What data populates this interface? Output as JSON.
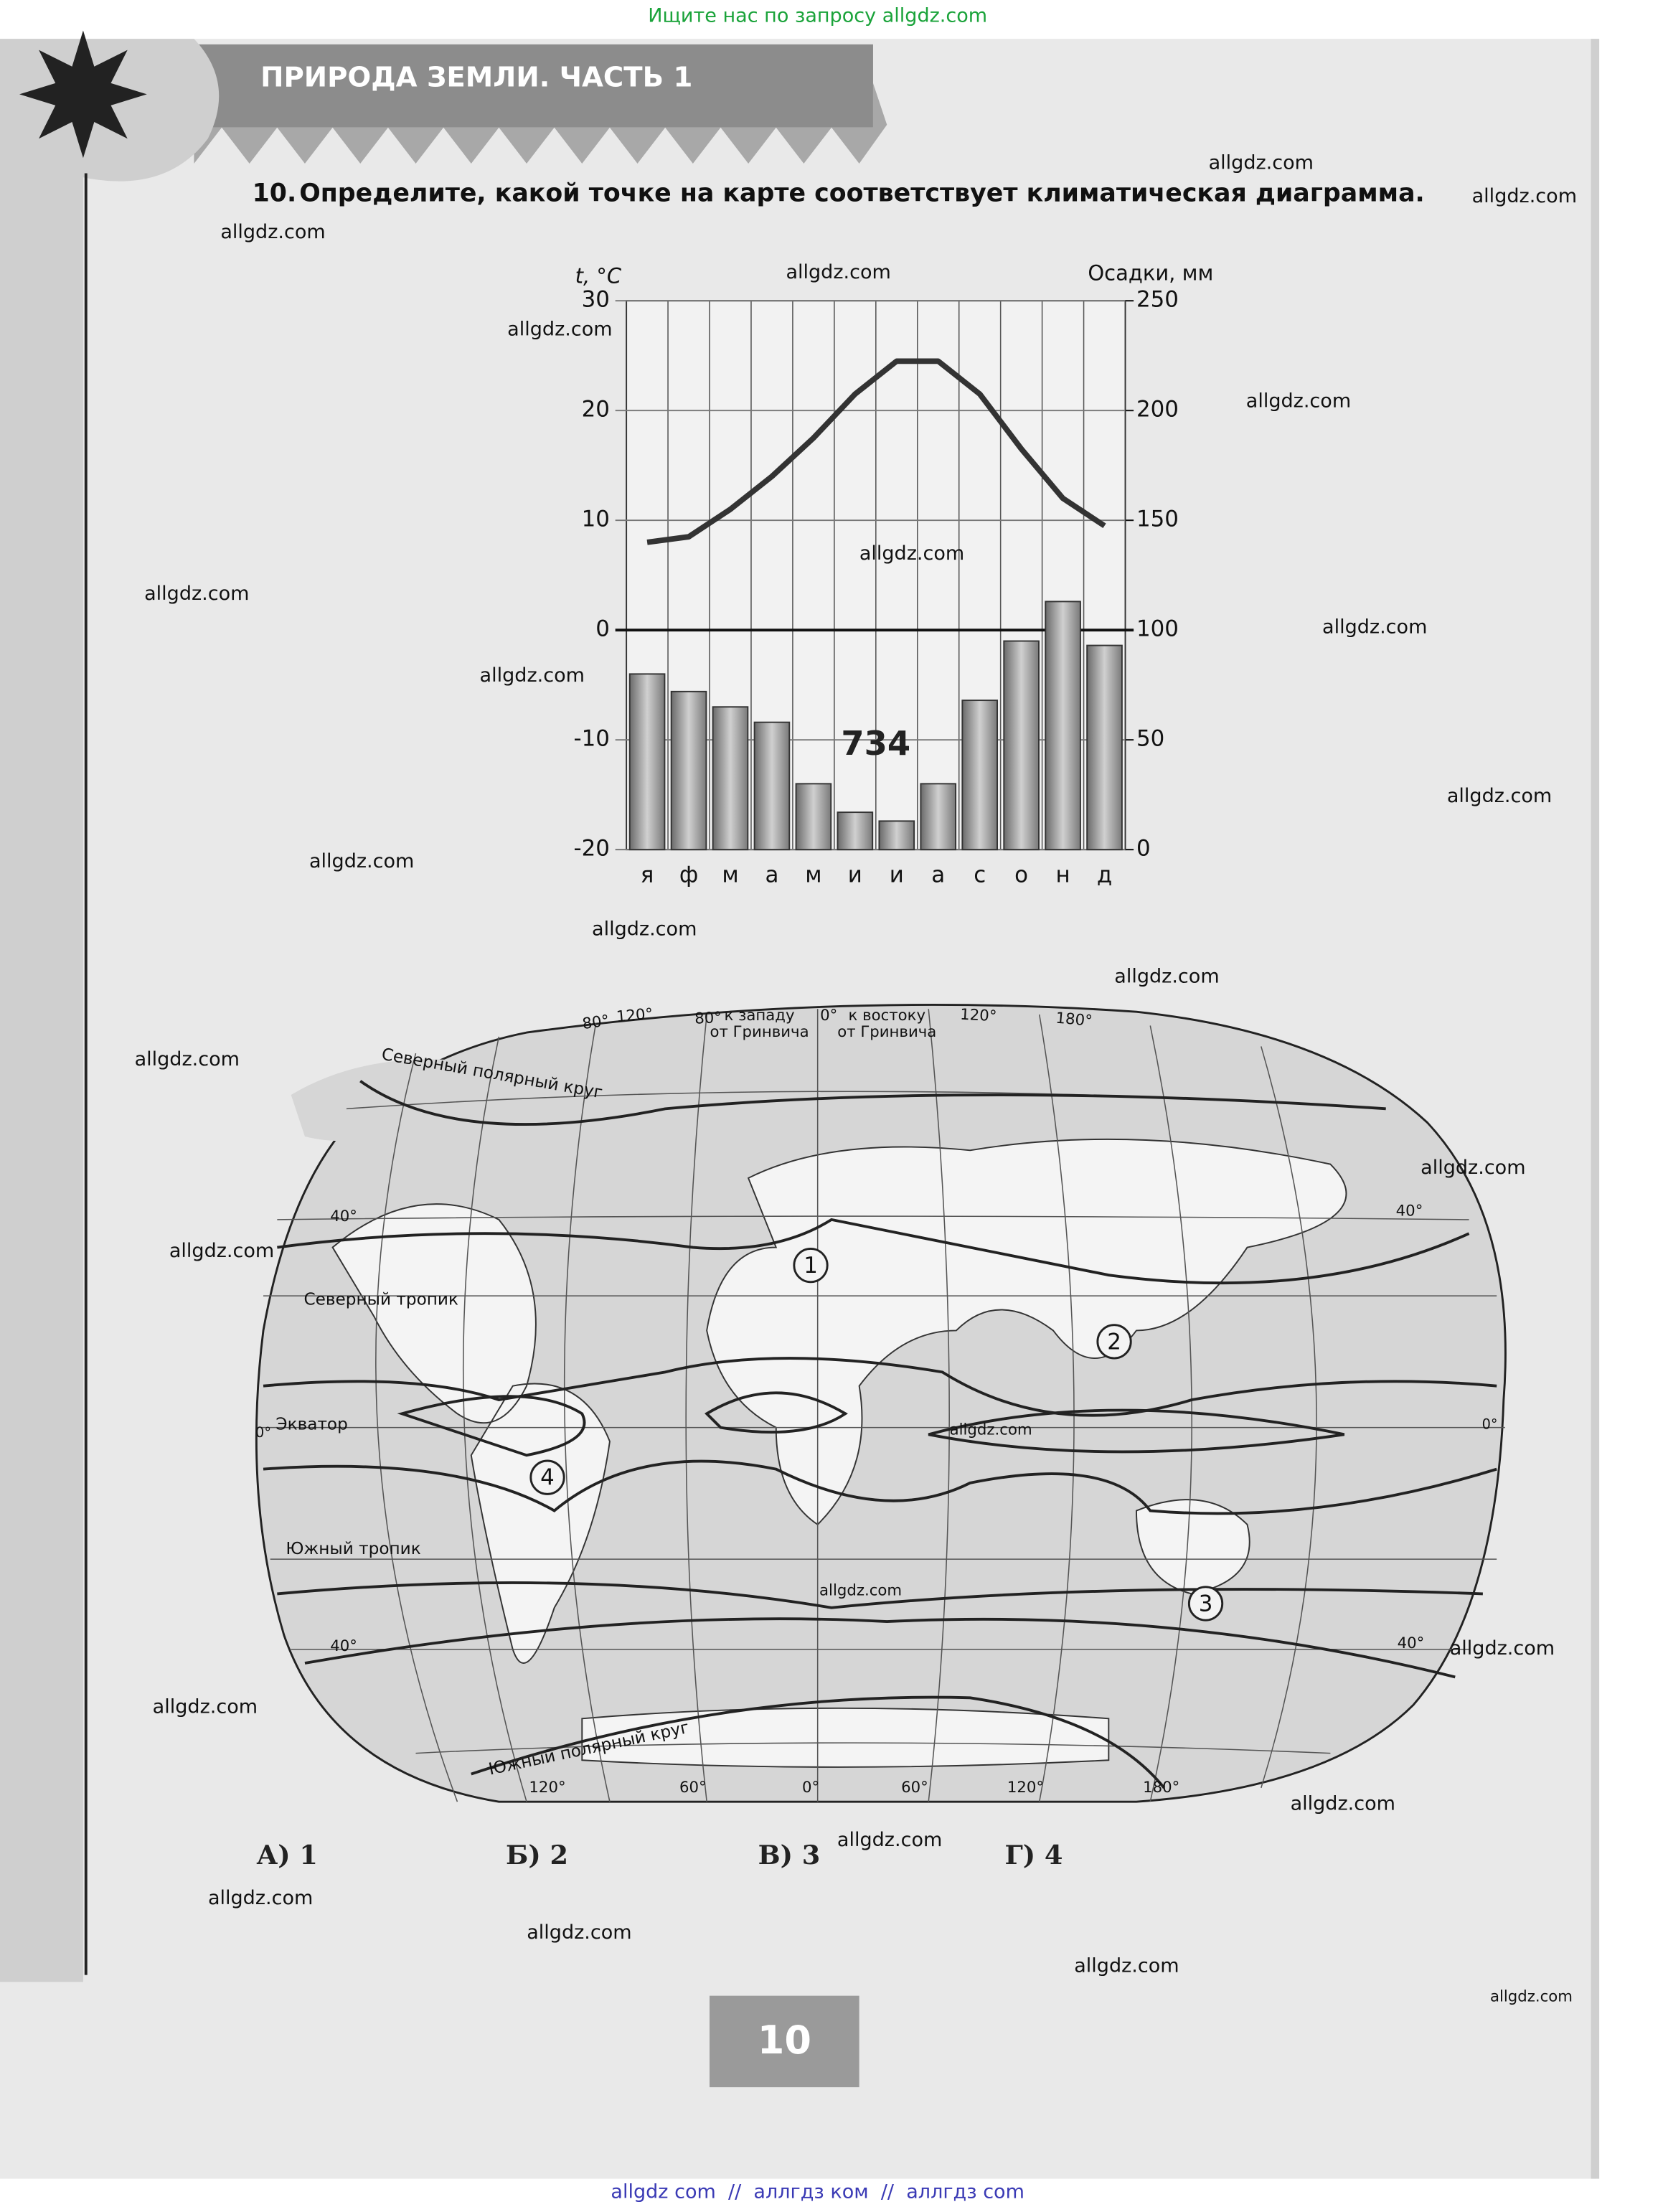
{
  "top_banner": "Ищите нас по запросу allgdz.com",
  "header": {
    "title": "ПРИРОДА ЗЕМЛИ. ЧАСТЬ 1"
  },
  "question": {
    "number": "10.",
    "text": "Определите, какой точке на карте соответствует климатическая диаграмма."
  },
  "diagram": {
    "y_label": "t, °C",
    "y2_label": "Осадки, мм",
    "months": [
      "я",
      "ф",
      "м",
      "а",
      "м",
      "и",
      "и",
      "а",
      "с",
      "о",
      "н",
      "д"
    ],
    "temperature": [
      8,
      8.5,
      11,
      14,
      17.5,
      21.5,
      24.5,
      24.5,
      21.5,
      16.5,
      12,
      9.5
    ],
    "precipitation": [
      80,
      72,
      65,
      58,
      30,
      17,
      13,
      30,
      68,
      95,
      113,
      93
    ],
    "annual_precipitation": 734,
    "ylim": [
      -20,
      30
    ],
    "yticks": [
      -20,
      -10,
      0,
      10,
      20,
      30
    ],
    "y2lim": [
      0,
      250
    ],
    "y2ticks": [
      0,
      50,
      100,
      150,
      200,
      250
    ]
  },
  "map": {
    "top_labels": [
      "80°",
      "120°",
      "80°",
      "0°",
      "120°",
      "180°"
    ],
    "west_label": [
      "к западу",
      "от Гринвича"
    ],
    "east_label": [
      "к востоку",
      "от Гринвича"
    ],
    "parallels": [
      "Северный полярный круг",
      "40°",
      "Северный тропик",
      "Экватор",
      "0°",
      "Южный тропик",
      "40°",
      "Южный полярный круг",
      "40°",
      "0°",
      "40°"
    ],
    "bottom_labels": [
      "120°",
      "60°",
      "0°",
      "60°",
      "120°",
      "180°"
    ],
    "points": [
      "1",
      "2",
      "3",
      "4"
    ]
  },
  "answers": [
    "А) 1",
    "Б) 2",
    "В) 3",
    "Г) 4"
  ],
  "page_number": "10",
  "watermarks": [
    "allgdz.com",
    "allgdz.com",
    "allgdz.com",
    "allgdz.com",
    "allgdz.com",
    "allgdz.com",
    "allgdz.com",
    "allgdz.com",
    "allgdz.com",
    "allgdz.com",
    "allgdz.com",
    "allgdz.com",
    "allgdz.com",
    "allgdz.com",
    "allgdz.com",
    "allgdz.com",
    "allgdz.com",
    "allgdz.com",
    "allgdz.com",
    "allgdz.com",
    "allgdz.com",
    "allgdz.com",
    "allgdz.com",
    "allgdz.com",
    "allgdz.com",
    "allgdz.com",
    "allgdz.com"
  ],
  "footer": "allgdz com  //  аллгдз ком  //  аллгдз com"
}
